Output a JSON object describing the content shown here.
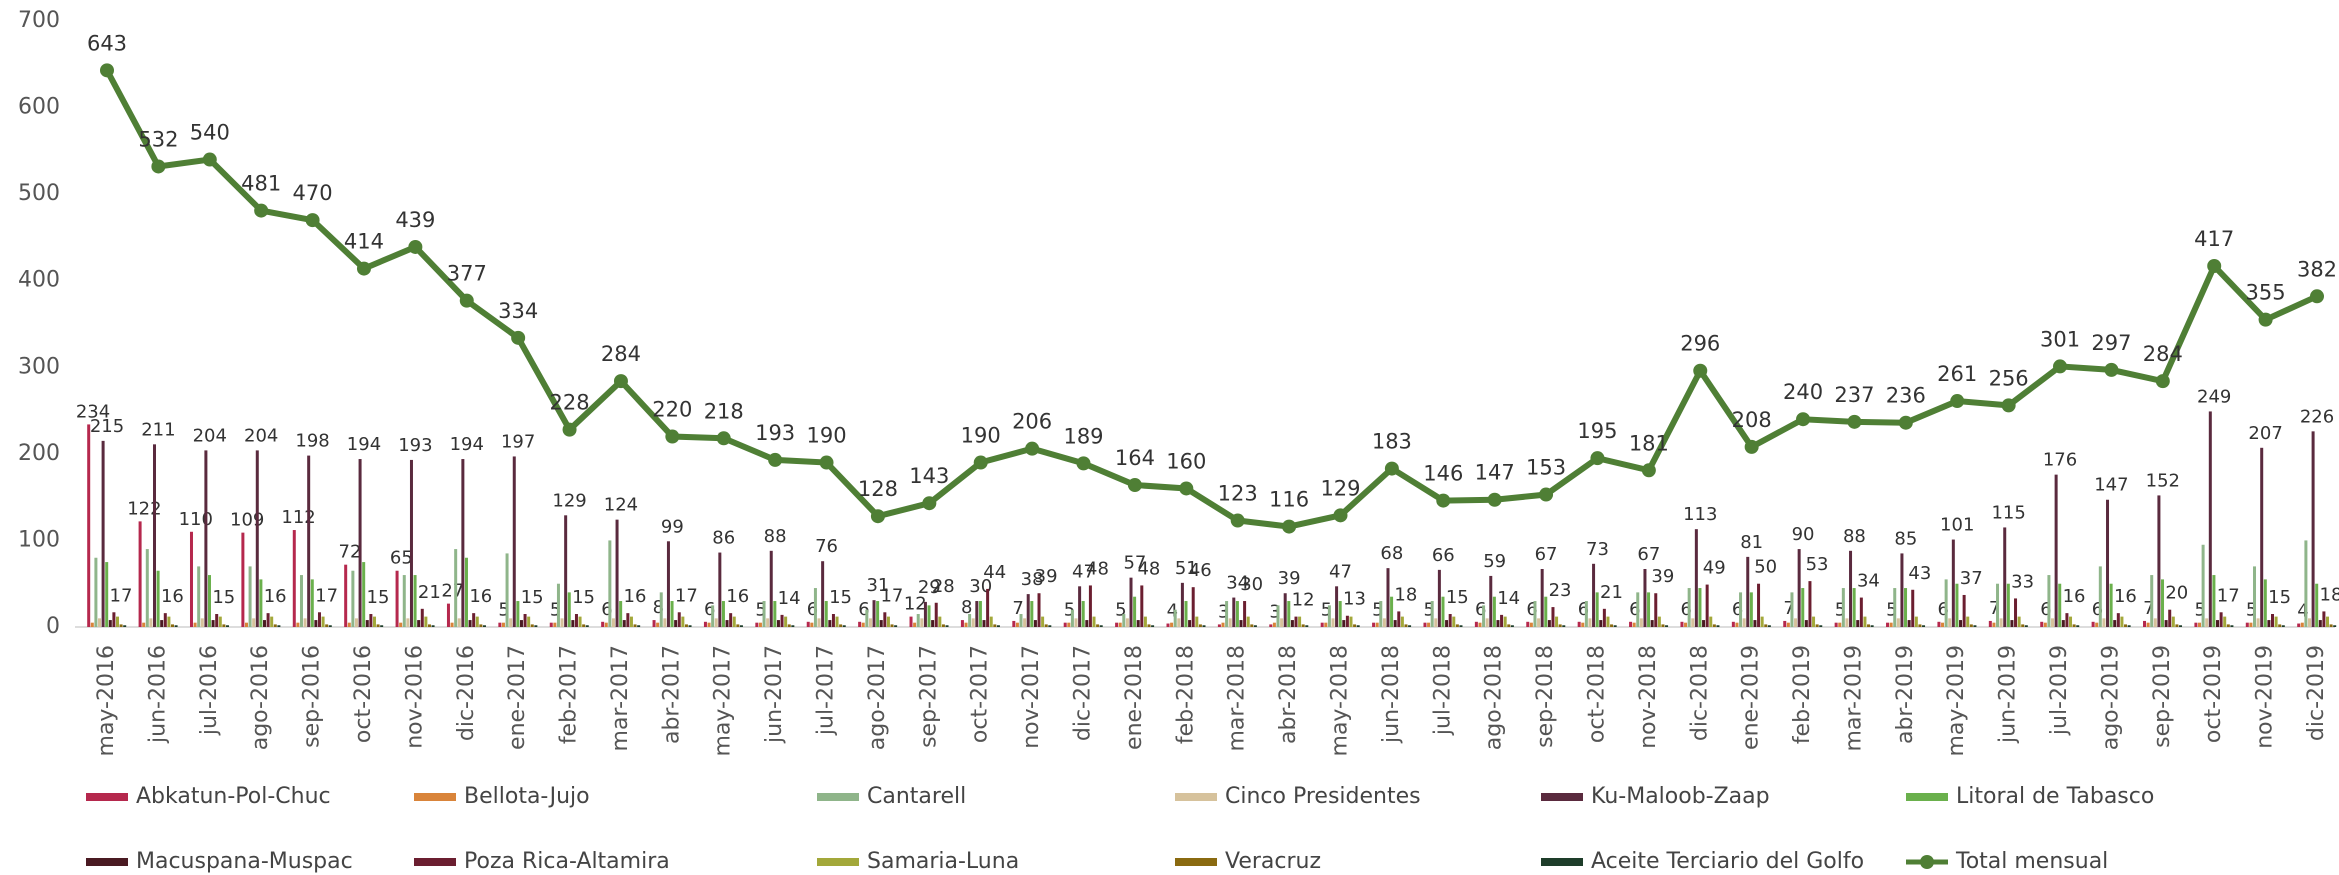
{
  "chart_data": {
    "type": "bar",
    "categories": [
      "may-2016",
      "jun-2016",
      "jul-2016",
      "ago-2016",
      "sep-2016",
      "oct-2016",
      "nov-2016",
      "dic-2016",
      "ene-2017",
      "feb-2017",
      "mar-2017",
      "abr-2017",
      "may-2017",
      "jun-2017",
      "jul-2017",
      "ago-2017",
      "sep-2017",
      "oct-2017",
      "nov-2017",
      "dic-2017",
      "ene-2018",
      "feb-2018",
      "mar-2018",
      "abr-2018",
      "may-2018",
      "jun-2018",
      "jul-2018",
      "ago-2018",
      "sep-2018",
      "oct-2018",
      "nov-2018",
      "dic-2018",
      "ene-2019",
      "feb-2019",
      "mar-2019",
      "abr-2019",
      "may-2019",
      "jun-2019",
      "jul-2019",
      "ago-2019",
      "sep-2019",
      "oct-2019",
      "nov-2019",
      "dic-2019"
    ],
    "ylim": [
      0,
      700
    ],
    "yticks": [
      0,
      100,
      200,
      300,
      400,
      500,
      600,
      700
    ],
    "series": [
      {
        "name": "Abkatun-Pol-Chuc",
        "color": "#b5284d",
        "show_labels": true,
        "values": [
          234,
          122,
          110,
          109,
          112,
          72,
          65,
          27,
          5,
          5,
          6,
          8,
          6,
          5,
          6,
          6,
          12,
          8,
          7,
          5,
          5,
          4,
          3,
          3,
          5,
          5,
          5,
          6,
          6,
          6,
          6,
          6,
          6,
          7,
          5,
          5,
          6,
          7,
          6,
          6,
          7,
          5,
          5,
          4
        ]
      },
      {
        "name": "Bellota-Jujo",
        "color": "#d9843a",
        "values": [
          5,
          5,
          5,
          5,
          5,
          5,
          5,
          5,
          5,
          5,
          5,
          5,
          5,
          5,
          5,
          5,
          5,
          5,
          5,
          5,
          5,
          5,
          5,
          5,
          5,
          5,
          5,
          5,
          5,
          5,
          5,
          5,
          5,
          5,
          5,
          5,
          5,
          5,
          5,
          5,
          5,
          5,
          5,
          5
        ]
      },
      {
        "name": "Cantarell",
        "color": "#8fb58a",
        "values": [
          80,
          90,
          70,
          70,
          60,
          65,
          60,
          90,
          85,
          50,
          100,
          40,
          25,
          30,
          45,
          20,
          15,
          15,
          15,
          20,
          15,
          20,
          30,
          25,
          25,
          30,
          30,
          25,
          30,
          30,
          40,
          45,
          40,
          40,
          45,
          45,
          55,
          50,
          60,
          70,
          60,
          95,
          70,
          100
        ]
      },
      {
        "name": "Cinco Presidentes",
        "color": "#d6c29c",
        "values": [
          10,
          10,
          10,
          10,
          10,
          10,
          10,
          10,
          10,
          10,
          10,
          10,
          10,
          10,
          10,
          10,
          10,
          10,
          10,
          10,
          10,
          10,
          10,
          10,
          10,
          10,
          10,
          10,
          10,
          10,
          10,
          10,
          10,
          10,
          10,
          10,
          10,
          10,
          10,
          10,
          10,
          10,
          10,
          10
        ]
      },
      {
        "name": "Ku-Maloob-Zaap",
        "color": "#5a2a3e",
        "show_labels": true,
        "values": [
          215,
          211,
          204,
          204,
          198,
          194,
          193,
          194,
          197,
          129,
          124,
          99,
          86,
          88,
          76,
          31,
          29,
          30,
          38,
          47,
          57,
          51,
          34,
          39,
          47,
          68,
          66,
          59,
          67,
          73,
          67,
          113,
          81,
          90,
          88,
          85,
          101,
          115,
          176,
          147,
          152,
          249,
          207,
          226
        ]
      },
      {
        "name": "Litoral de Tabasco",
        "color": "#6ab04c",
        "values": [
          75,
          65,
          60,
          55,
          55,
          75,
          60,
          80,
          30,
          40,
          30,
          30,
          30,
          30,
          30,
          30,
          25,
          30,
          30,
          30,
          35,
          30,
          30,
          30,
          30,
          35,
          35,
          35,
          35,
          40,
          40,
          45,
          40,
          45,
          45,
          45,
          50,
          50,
          50,
          50,
          55,
          60,
          55,
          50
        ]
      },
      {
        "name": "Macuspana-Muspac",
        "color": "#4a1a22",
        "values": [
          8,
          8,
          8,
          8,
          8,
          8,
          8,
          8,
          8,
          8,
          8,
          8,
          8,
          8,
          8,
          8,
          8,
          8,
          8,
          8,
          8,
          8,
          8,
          8,
          8,
          8,
          8,
          8,
          8,
          8,
          8,
          8,
          8,
          8,
          8,
          8,
          8,
          8,
          8,
          8,
          8,
          8,
          8,
          8
        ]
      },
      {
        "name": "Poza Rica-Altamira",
        "color": "#6b1e30",
        "show_labels": true,
        "values": [
          17,
          16,
          15,
          16,
          17,
          15,
          21,
          16,
          15,
          15,
          16,
          17,
          16,
          14,
          15,
          17,
          28,
          44,
          39,
          48,
          48,
          46,
          30,
          12,
          13,
          18,
          15,
          14,
          23,
          21,
          39,
          49,
          50,
          53,
          34,
          43,
          37,
          33,
          16,
          16,
          20,
          17,
          15,
          18
        ]
      },
      {
        "name": "Samaria-Luna",
        "color": "#a3a83a",
        "values": [
          12,
          12,
          12,
          12,
          12,
          12,
          12,
          12,
          12,
          12,
          12,
          12,
          12,
          12,
          12,
          12,
          12,
          12,
          12,
          12,
          12,
          12,
          12,
          12,
          12,
          12,
          12,
          12,
          12,
          12,
          12,
          12,
          12,
          12,
          12,
          12,
          12,
          12,
          12,
          12,
          12,
          12,
          12,
          12
        ]
      },
      {
        "name": "Veracruz",
        "color": "#8a6a10",
        "values": [
          3,
          3,
          3,
          3,
          3,
          3,
          3,
          3,
          3,
          3,
          3,
          3,
          3,
          3,
          3,
          3,
          3,
          3,
          3,
          3,
          3,
          3,
          3,
          3,
          3,
          3,
          3,
          3,
          3,
          3,
          3,
          3,
          3,
          3,
          3,
          3,
          3,
          3,
          3,
          3,
          3,
          3,
          3,
          3
        ]
      },
      {
        "name": "Aceite Terciario del Golfo",
        "color": "#1e3d2a",
        "values": [
          2,
          2,
          2,
          2,
          2,
          2,
          2,
          2,
          2,
          2,
          2,
          2,
          2,
          2,
          2,
          2,
          2,
          2,
          2,
          2,
          2,
          2,
          2,
          2,
          2,
          2,
          2,
          2,
          2,
          2,
          2,
          2,
          2,
          2,
          2,
          2,
          2,
          2,
          2,
          2,
          2,
          2,
          2,
          2
        ]
      },
      {
        "name": "Total mensual",
        "color": "#4f7f35",
        "type": "line",
        "show_labels": true,
        "values": [
          643,
          532,
          540,
          481,
          470,
          414,
          439,
          377,
          334,
          228,
          284,
          220,
          218,
          193,
          190,
          128,
          143,
          190,
          206,
          189,
          164,
          160,
          123,
          116,
          129,
          183,
          146,
          147,
          153,
          195,
          181,
          296,
          208,
          240,
          237,
          236,
          261,
          256,
          301,
          297,
          284,
          417,
          355,
          382
        ]
      }
    ]
  }
}
